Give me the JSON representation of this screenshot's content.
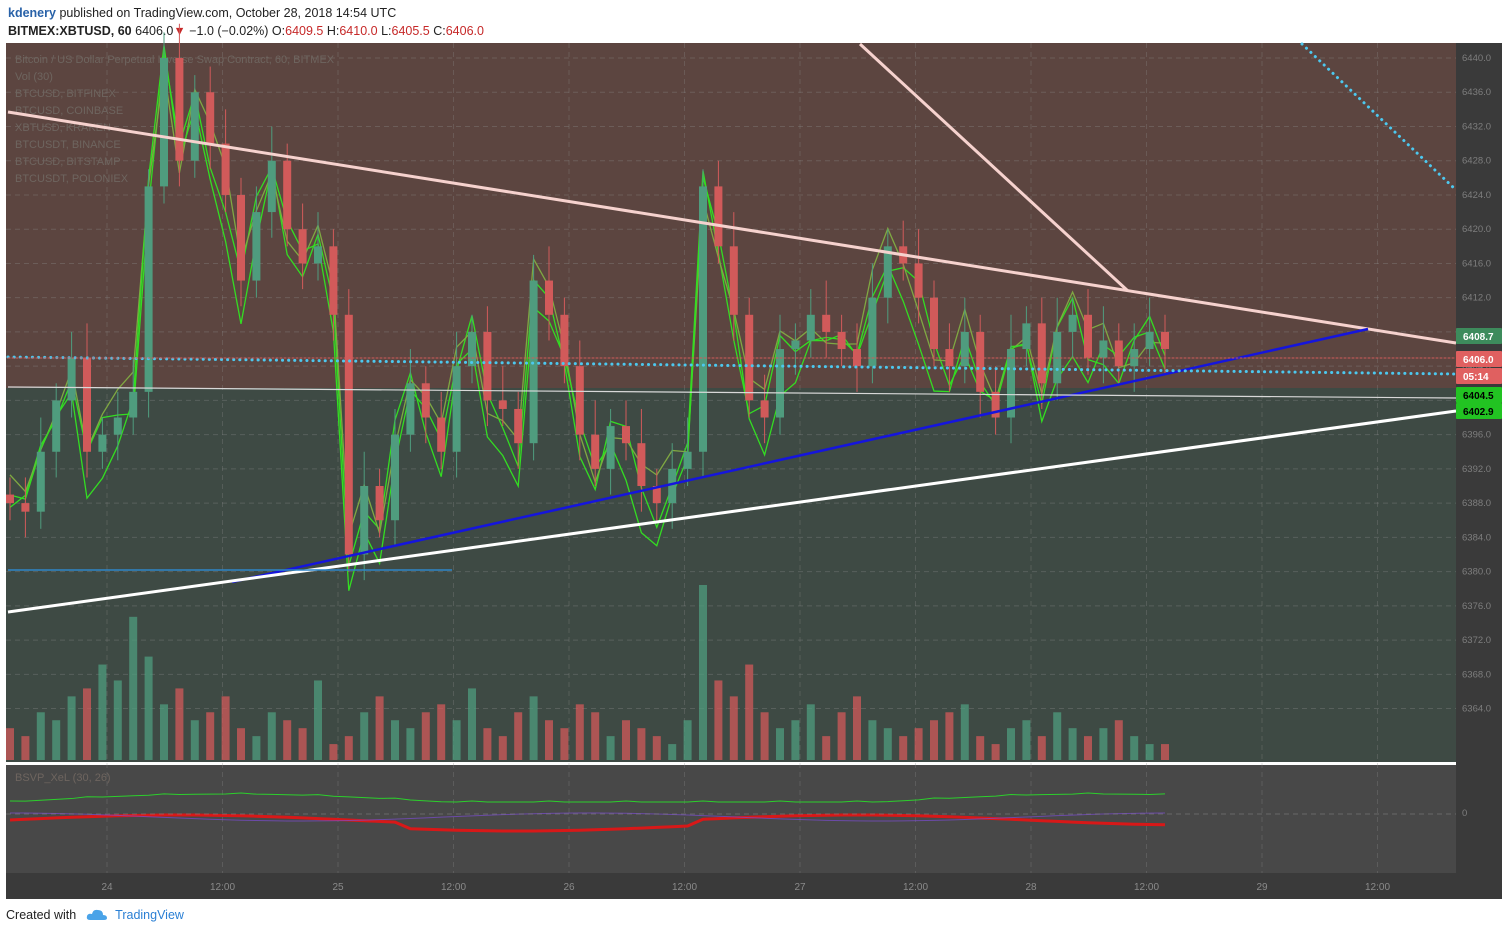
{
  "header": {
    "author": "kdenery",
    "published": "published on TradingView.com, October 28, 2018 14:54 UTC",
    "symbol": "BITMEX:XBTUSD, 60",
    "last": "6406.0",
    "change": "−1.0 (−0.02%)",
    "o_label": "O:",
    "o_value": "6409.5",
    "h_label": "H:",
    "h_value": "6410.0",
    "l_label": "L:",
    "l_value": "6405.5",
    "c_label": "C:",
    "c_value": "6406.0"
  },
  "footer": {
    "created": "Created with",
    "brand": "TradingView"
  },
  "legend": [
    "Bitcoin / US Dollar Perpetual Inverse Swap Contract, 60, BITMEX",
    "Vol (30)",
    "BTCUSD, BITFINEX",
    "BTCUSD, COINBASE",
    "XBTUSD, KRAKEN",
    "BTCUSDT, BINANCE",
    "BTCUSD, BITSTAMP",
    "BTCUSDT, POLONIEX"
  ],
  "indicator": {
    "label": "BSVP_XeL (30, 26)",
    "zero_label": "0"
  },
  "price_badges": [
    {
      "text": "6408.7",
      "bg": "#3d8b5c",
      "fg": "#ffffff"
    },
    {
      "text": "6406.0",
      "bg": "#e06060",
      "fg": "#ffffff"
    },
    {
      "text": "05:14",
      "bg": "#e06060",
      "fg": "#ffffff"
    },
    {
      "text": "6404.5",
      "bg": "#22c322",
      "fg": "#000000"
    },
    {
      "text": "6402.9",
      "bg": "#22c322",
      "fg": "#000000"
    }
  ],
  "colors": {
    "upper_zone": "#5c4540",
    "lower_zone": "#3e4a44",
    "indicator_bg": "#484848",
    "up_candle": "#4f9c7e",
    "down_candle": "#d15a5a",
    "overlay_bright": "#33dd22",
    "overlay_olive": "#7fa842",
    "trend_pink": "#f6d2ce",
    "trend_blue": "#1515dd",
    "trend_white": "#ffffff",
    "dotted_cyan": "#4cc8ef"
  },
  "chart_data": {
    "type": "candlestick",
    "y_axis": {
      "range": [
        6360,
        6442
      ],
      "tick_labels": [
        "6440.0",
        "6436.0",
        "6432.0",
        "6428.0",
        "6424.0",
        "6420.0",
        "6416.0",
        "6412.0",
        "6408.0",
        "6404.0",
        "6400.0",
        "6396.0",
        "6392.0",
        "6388.0",
        "6384.0",
        "6380.0",
        "6376.0",
        "6372.0",
        "6368.0",
        "6364.0"
      ]
    },
    "x_axis": {
      "tick_labels": [
        "24",
        "12:00",
        "25",
        "12:00",
        "26",
        "12:00",
        "27",
        "12:00",
        "28",
        "12:00",
        "29",
        "12:00"
      ]
    },
    "close_path": [
      6388,
      6387,
      6394,
      6400,
      6405,
      6394,
      6396,
      6398,
      6401,
      6425,
      6440,
      6428,
      6436,
      6430,
      6424,
      6414,
      6422,
      6428,
      6420,
      6416,
      6418,
      6410,
      6382,
      6390,
      6386,
      6396,
      6402,
      6398,
      6394,
      6404,
      6408,
      6400,
      6399,
      6395,
      6414,
      6410,
      6404,
      6396,
      6392,
      6397,
      6395,
      6390,
      6388,
      6392,
      6394,
      6425,
      6418,
      6410,
      6400,
      6398,
      6406,
      6407,
      6410,
      6408,
      6406,
      6404,
      6412,
      6418,
      6416,
      6412,
      6406,
      6404,
      6408,
      6401,
      6398,
      6406,
      6409,
      6402,
      6408,
      6410,
      6405,
      6407,
      6404,
      6406,
      6408,
      6406
    ],
    "volume": [
      4,
      3,
      6,
      5,
      8,
      9,
      12,
      10,
      18,
      13,
      7,
      9,
      5,
      6,
      8,
      4,
      3,
      6,
      5,
      4,
      10,
      2,
      3,
      6,
      8,
      5,
      4,
      6,
      7,
      5,
      9,
      4,
      3,
      6,
      8,
      5,
      4,
      7,
      6,
      3,
      5,
      4,
      3,
      2,
      5,
      22,
      10,
      8,
      12,
      6,
      4,
      5,
      7,
      3,
      6,
      8,
      5,
      4,
      3,
      4,
      5,
      6,
      7,
      3,
      2,
      4,
      5,
      3,
      6,
      4,
      3,
      4,
      5,
      3,
      2,
      2
    ],
    "annotations": [
      "downtrend line (pink) from upper left",
      "steep pink line into triangle apex",
      "blue ascending support line",
      "white ascending support line",
      "cyan dotted horizontal line near 6406",
      "cyan dotted descending line top right"
    ]
  }
}
